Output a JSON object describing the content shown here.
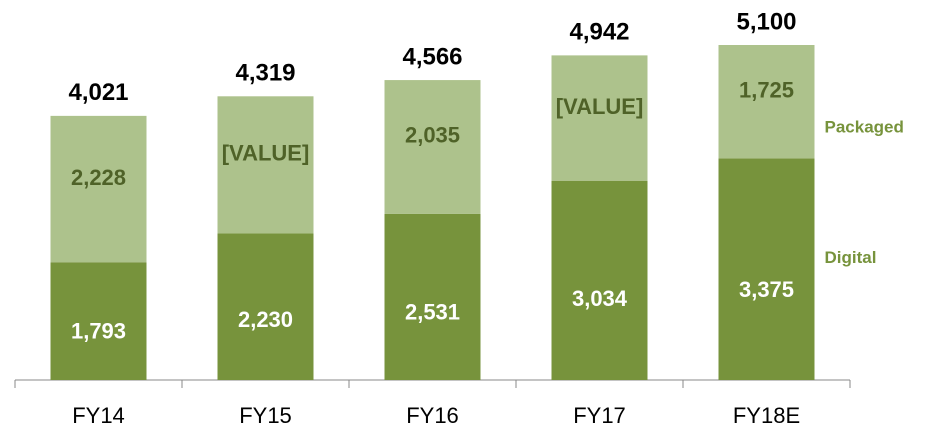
{
  "chart_data": {
    "type": "stacked_bar",
    "categories": [
      "FY14",
      "FY15",
      "FY16",
      "FY17",
      "FY18E"
    ],
    "series": [
      {
        "name": "Digital",
        "color": "#77933c",
        "values": [
          1793,
          2230,
          2531,
          3034,
          3375
        ],
        "value_labels": [
          "1,793",
          "2,230",
          "2,531",
          "3,034",
          "3,375"
        ]
      },
      {
        "name": "Packaged",
        "color": "#adc28c",
        "values": [
          2228,
          2089,
          2035,
          1908,
          1725
        ],
        "value_labels": [
          "2,228",
          "[VALUE]",
          "2,035",
          "[VALUE]",
          "1,725"
        ]
      }
    ],
    "totals": [
      4021,
      4319,
      4566,
      4942,
      5100
    ],
    "total_labels": [
      "4,021",
      "4,319",
      "4,566",
      "4,942",
      "5,100"
    ],
    "ylim": [
      0,
      5100
    ]
  }
}
